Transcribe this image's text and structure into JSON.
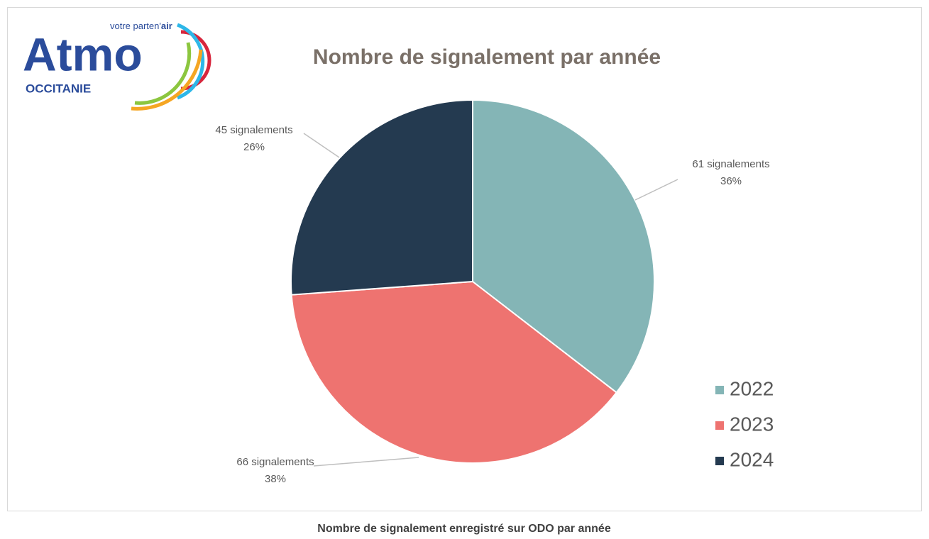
{
  "logo": {
    "name": "Atmo",
    "tagline": "votre parten'",
    "tagline_bold": "air",
    "region": "OCCITANIE"
  },
  "caption": "Nombre de signalement enregistré sur ODO par année",
  "chart_data": {
    "type": "pie",
    "title": "Nombre de signalement par année",
    "categories": [
      "2022",
      "2023",
      "2024"
    ],
    "values": [
      61,
      66,
      45
    ],
    "value_labels": [
      "61 signalements",
      "66 signalements",
      "45 signalements"
    ],
    "percentages": [
      36,
      38,
      26
    ],
    "percentage_labels": [
      "36%",
      "38%",
      "26%"
    ],
    "colors": [
      "#84b5b6",
      "#ee7370",
      "#243a50"
    ],
    "legend": "right"
  }
}
